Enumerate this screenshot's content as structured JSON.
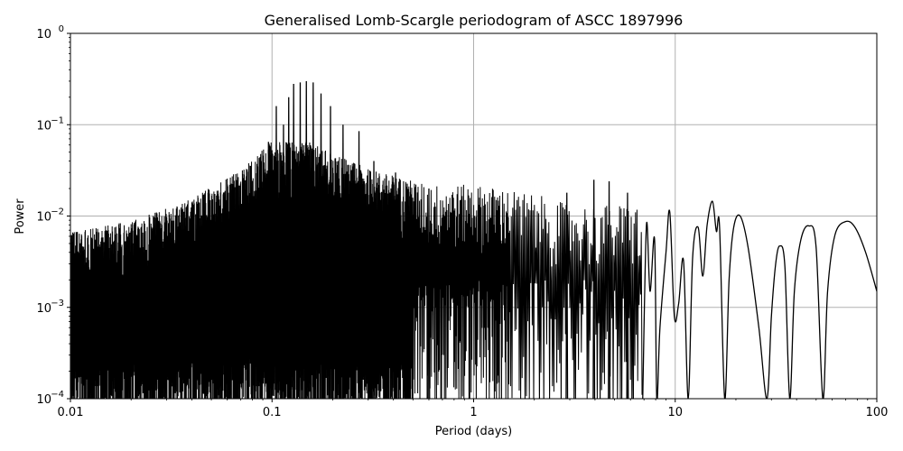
{
  "chart_data": {
    "type": "line",
    "title": "Generalised Lomb-Scargle periodogram of ASCC 1897996",
    "xlabel": "Period (days)",
    "ylabel": "Power",
    "xscale": "log",
    "yscale": "log",
    "xlim": [
      0.01,
      100
    ],
    "ylim": [
      0.0001,
      1
    ],
    "grid": true,
    "legend": null,
    "x_ticks": [
      {
        "value": 0.01,
        "label": "0.01"
      },
      {
        "value": 0.1,
        "label": "0.1"
      },
      {
        "value": 1,
        "label": "1"
      },
      {
        "value": 10,
        "label": "10"
      },
      {
        "value": 100,
        "label": "100"
      }
    ],
    "y_ticks": [
      {
        "value": 0.0001,
        "base": "10",
        "exp": "−4"
      },
      {
        "value": 0.001,
        "base": "10",
        "exp": "−3"
      },
      {
        "value": 0.01,
        "base": "10",
        "exp": "−2"
      },
      {
        "value": 0.1,
        "base": "10",
        "exp": "−1"
      },
      {
        "value": 1,
        "base": "10",
        "exp": "0"
      }
    ],
    "dense_region": {
      "description": "Dense aliased noise forest from 0.01 to ~3 days",
      "envelope": [
        {
          "period": 0.01,
          "power": 0.003
        },
        {
          "period": 0.02,
          "power": 0.004
        },
        {
          "period": 0.04,
          "power": 0.007
        },
        {
          "period": 0.07,
          "power": 0.015
        },
        {
          "period": 0.1,
          "power": 0.03
        },
        {
          "period": 0.15,
          "power": 0.03
        },
        {
          "period": 0.3,
          "power": 0.015
        },
        {
          "period": 0.6,
          "power": 0.01
        },
        {
          "period": 1.0,
          "power": 0.01
        },
        {
          "period": 2.0,
          "power": 0.008
        },
        {
          "period": 3.0,
          "power": 0.006
        }
      ]
    },
    "alias_spikes": [
      {
        "period": 0.081,
        "power": 0.015
      },
      {
        "period": 0.088,
        "power": 0.035
      },
      {
        "period": 0.096,
        "power": 0.065
      },
      {
        "period": 0.105,
        "power": 0.16
      },
      {
        "period": 0.114,
        "power": 0.1
      },
      {
        "period": 0.121,
        "power": 0.2
      },
      {
        "period": 0.128,
        "power": 0.28
      },
      {
        "period": 0.138,
        "power": 0.29
      },
      {
        "period": 0.148,
        "power": 0.3
      },
      {
        "period": 0.16,
        "power": 0.29
      },
      {
        "period": 0.175,
        "power": 0.22
      },
      {
        "period": 0.195,
        "power": 0.16
      },
      {
        "period": 0.225,
        "power": 0.1
      },
      {
        "period": 0.27,
        "power": 0.085
      },
      {
        "period": 0.32,
        "power": 0.04
      },
      {
        "period": 0.41,
        "power": 0.03
      },
      {
        "period": 0.6,
        "power": 0.02
      }
    ],
    "smooth_peaks": [
      {
        "period": 2.9,
        "power": 0.018
      },
      {
        "period": 3.95,
        "power": 0.025
      },
      {
        "period": 4.7,
        "power": 0.024
      },
      {
        "period": 5.8,
        "power": 0.018
      },
      {
        "period": 7.2,
        "power": 0.008
      },
      {
        "period": 7.9,
        "power": 0.0055
      },
      {
        "period": 9.4,
        "power": 0.011
      },
      {
        "period": 11.2,
        "power": 0.0035
      },
      {
        "period": 13.0,
        "power": 0.0075
      },
      {
        "period": 15.3,
        "power": 0.0145
      },
      {
        "period": 16.6,
        "power": 0.0075
      },
      {
        "period": 21.0,
        "power": 0.01
      },
      {
        "period": 33.0,
        "power": 0.0047
      },
      {
        "period": 46.0,
        "power": 0.0078
      },
      {
        "period": 70.0,
        "power": 0.0087
      },
      {
        "period": 100.0,
        "power": 0.0015
      }
    ],
    "smooth_curve": [
      [
        6.9,
        0.0001
      ],
      [
        7.2,
        0.008
      ],
      [
        7.5,
        0.0015
      ],
      [
        7.9,
        0.0055
      ],
      [
        8.1,
        0.0001
      ],
      [
        8.4,
        0.0006
      ],
      [
        9.0,
        0.004
      ],
      [
        9.4,
        0.011
      ],
      [
        9.9,
        0.0008
      ],
      [
        10.4,
        0.0011
      ],
      [
        11.0,
        0.0032
      ],
      [
        11.6,
        0.0001
      ],
      [
        12.2,
        0.0035
      ],
      [
        13.0,
        0.0075
      ],
      [
        13.7,
        0.0022
      ],
      [
        14.4,
        0.008
      ],
      [
        15.3,
        0.0145
      ],
      [
        16.0,
        0.0068
      ],
      [
        16.6,
        0.0075
      ],
      [
        17.6,
        0.0001
      ],
      [
        18.5,
        0.002
      ],
      [
        19.5,
        0.0075
      ],
      [
        21.0,
        0.01
      ],
      [
        23.0,
        0.0045
      ],
      [
        26.0,
        0.0006
      ],
      [
        28.5,
        0.0001
      ],
      [
        30.0,
        0.0008
      ],
      [
        31.5,
        0.003
      ],
      [
        33.0,
        0.0047
      ],
      [
        35.0,
        0.0028
      ],
      [
        37.0,
        0.0001
      ],
      [
        39.0,
        0.0015
      ],
      [
        42.0,
        0.0055
      ],
      [
        46.0,
        0.0078
      ],
      [
        50.0,
        0.0045
      ],
      [
        54.0,
        0.0001
      ],
      [
        57.0,
        0.0015
      ],
      [
        62.0,
        0.0062
      ],
      [
        70.0,
        0.0087
      ],
      [
        78.0,
        0.0075
      ],
      [
        88.0,
        0.004
      ],
      [
        100.0,
        0.0015
      ]
    ]
  },
  "colors": {
    "line": "#000000",
    "grid": "#b0b0b0",
    "background": "#ffffff",
    "axes": "#000000"
  }
}
